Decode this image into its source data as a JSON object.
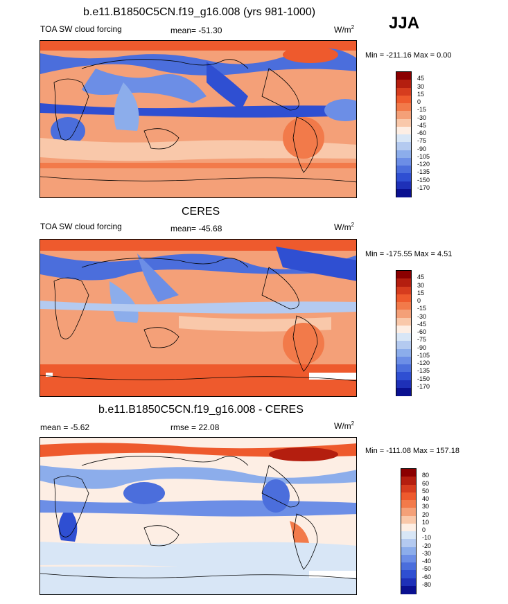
{
  "season": "JJA",
  "colors": {
    "cloud_forcing_scale": [
      "#8b0000",
      "#b41e0f",
      "#d63c1e",
      "#ee5a2d",
      "#f27a4a",
      "#f4a078",
      "#f9c8aa",
      "#fdeee4",
      "#d8e6f6",
      "#b4caf0",
      "#8cadeb",
      "#6c8ee6",
      "#4b6edc",
      "#2f4fd2",
      "#1e30b8",
      "#0a1090"
    ],
    "diff_scale": [
      "#8b0000",
      "#b41e0f",
      "#d63c1e",
      "#ee5a2d",
      "#f27a4a",
      "#f4a078",
      "#f9c8aa",
      "#fdeee4",
      "#d8e6f6",
      "#b4caf0",
      "#8cadeb",
      "#6c8ee6",
      "#4b6edc",
      "#2f4fd2",
      "#1e30b8",
      "#0a1090"
    ]
  },
  "panels": [
    {
      "title": "b.e11.B1850C5CN.f19_g16.008 (yrs 981-1000)",
      "left_label": "TOA SW cloud forcing",
      "stat_label": "mean= -51.30",
      "unit": "W/m",
      "unit_sup": "2",
      "minmax": "Min = -211.16 Max =   0.00",
      "levels": [
        "45",
        "30",
        "15",
        "0",
        "-15",
        "-30",
        "-45",
        "-60",
        "-75",
        "-90",
        "-105",
        "-120",
        "-135",
        "-150",
        "-170"
      ]
    },
    {
      "title": "CERES",
      "left_label": "TOA SW cloud forcing",
      "stat_label": "mean= -45.68",
      "unit": "W/m",
      "unit_sup": "2",
      "minmax": "Min = -175.55 Max =   4.51",
      "levels": [
        "45",
        "30",
        "15",
        "0",
        "-15",
        "-30",
        "-45",
        "-60",
        "-75",
        "-90",
        "-105",
        "-120",
        "-135",
        "-150",
        "-170"
      ]
    },
    {
      "title": "b.e11.B1850C5CN.f19_g16.008 - CERES",
      "left_label": "mean =  -5.62",
      "stat_label": "rmse =  22.08",
      "unit": "W/m",
      "unit_sup": "2",
      "minmax": "Min = -111.08 Max = 157.18",
      "levels": [
        "80",
        "60",
        "50",
        "40",
        "30",
        "20",
        "10",
        "0",
        "-10",
        "-20",
        "-30",
        "-40",
        "-50",
        "-60",
        "-80"
      ]
    }
  ],
  "chart_data": [
    {
      "type": "heatmap",
      "title": "b.e11.B1850C5CN.f19_g16.008 (yrs 981-1000)",
      "variable": "TOA SW cloud forcing",
      "units": "W/m2",
      "mean": -51.3,
      "min": -211.16,
      "max": 0.0,
      "contour_levels": [
        45,
        30,
        15,
        0,
        -15,
        -30,
        -45,
        -60,
        -75,
        -90,
        -105,
        -120,
        -135,
        -150,
        -170
      ]
    },
    {
      "type": "heatmap",
      "title": "CERES",
      "variable": "TOA SW cloud forcing",
      "units": "W/m2",
      "mean": -45.68,
      "min": -175.55,
      "max": 4.51,
      "contour_levels": [
        45,
        30,
        15,
        0,
        -15,
        -30,
        -45,
        -60,
        -75,
        -90,
        -105,
        -120,
        -135,
        -150,
        -170
      ]
    },
    {
      "type": "heatmap",
      "title": "b.e11.B1850C5CN.f19_g16.008 - CERES",
      "units": "W/m2",
      "mean": -5.62,
      "rmse": 22.08,
      "min": -111.08,
      "max": 157.18,
      "contour_levels": [
        80,
        60,
        50,
        40,
        30,
        20,
        10,
        0,
        -10,
        -20,
        -30,
        -40,
        -50,
        -60,
        -80
      ]
    }
  ]
}
